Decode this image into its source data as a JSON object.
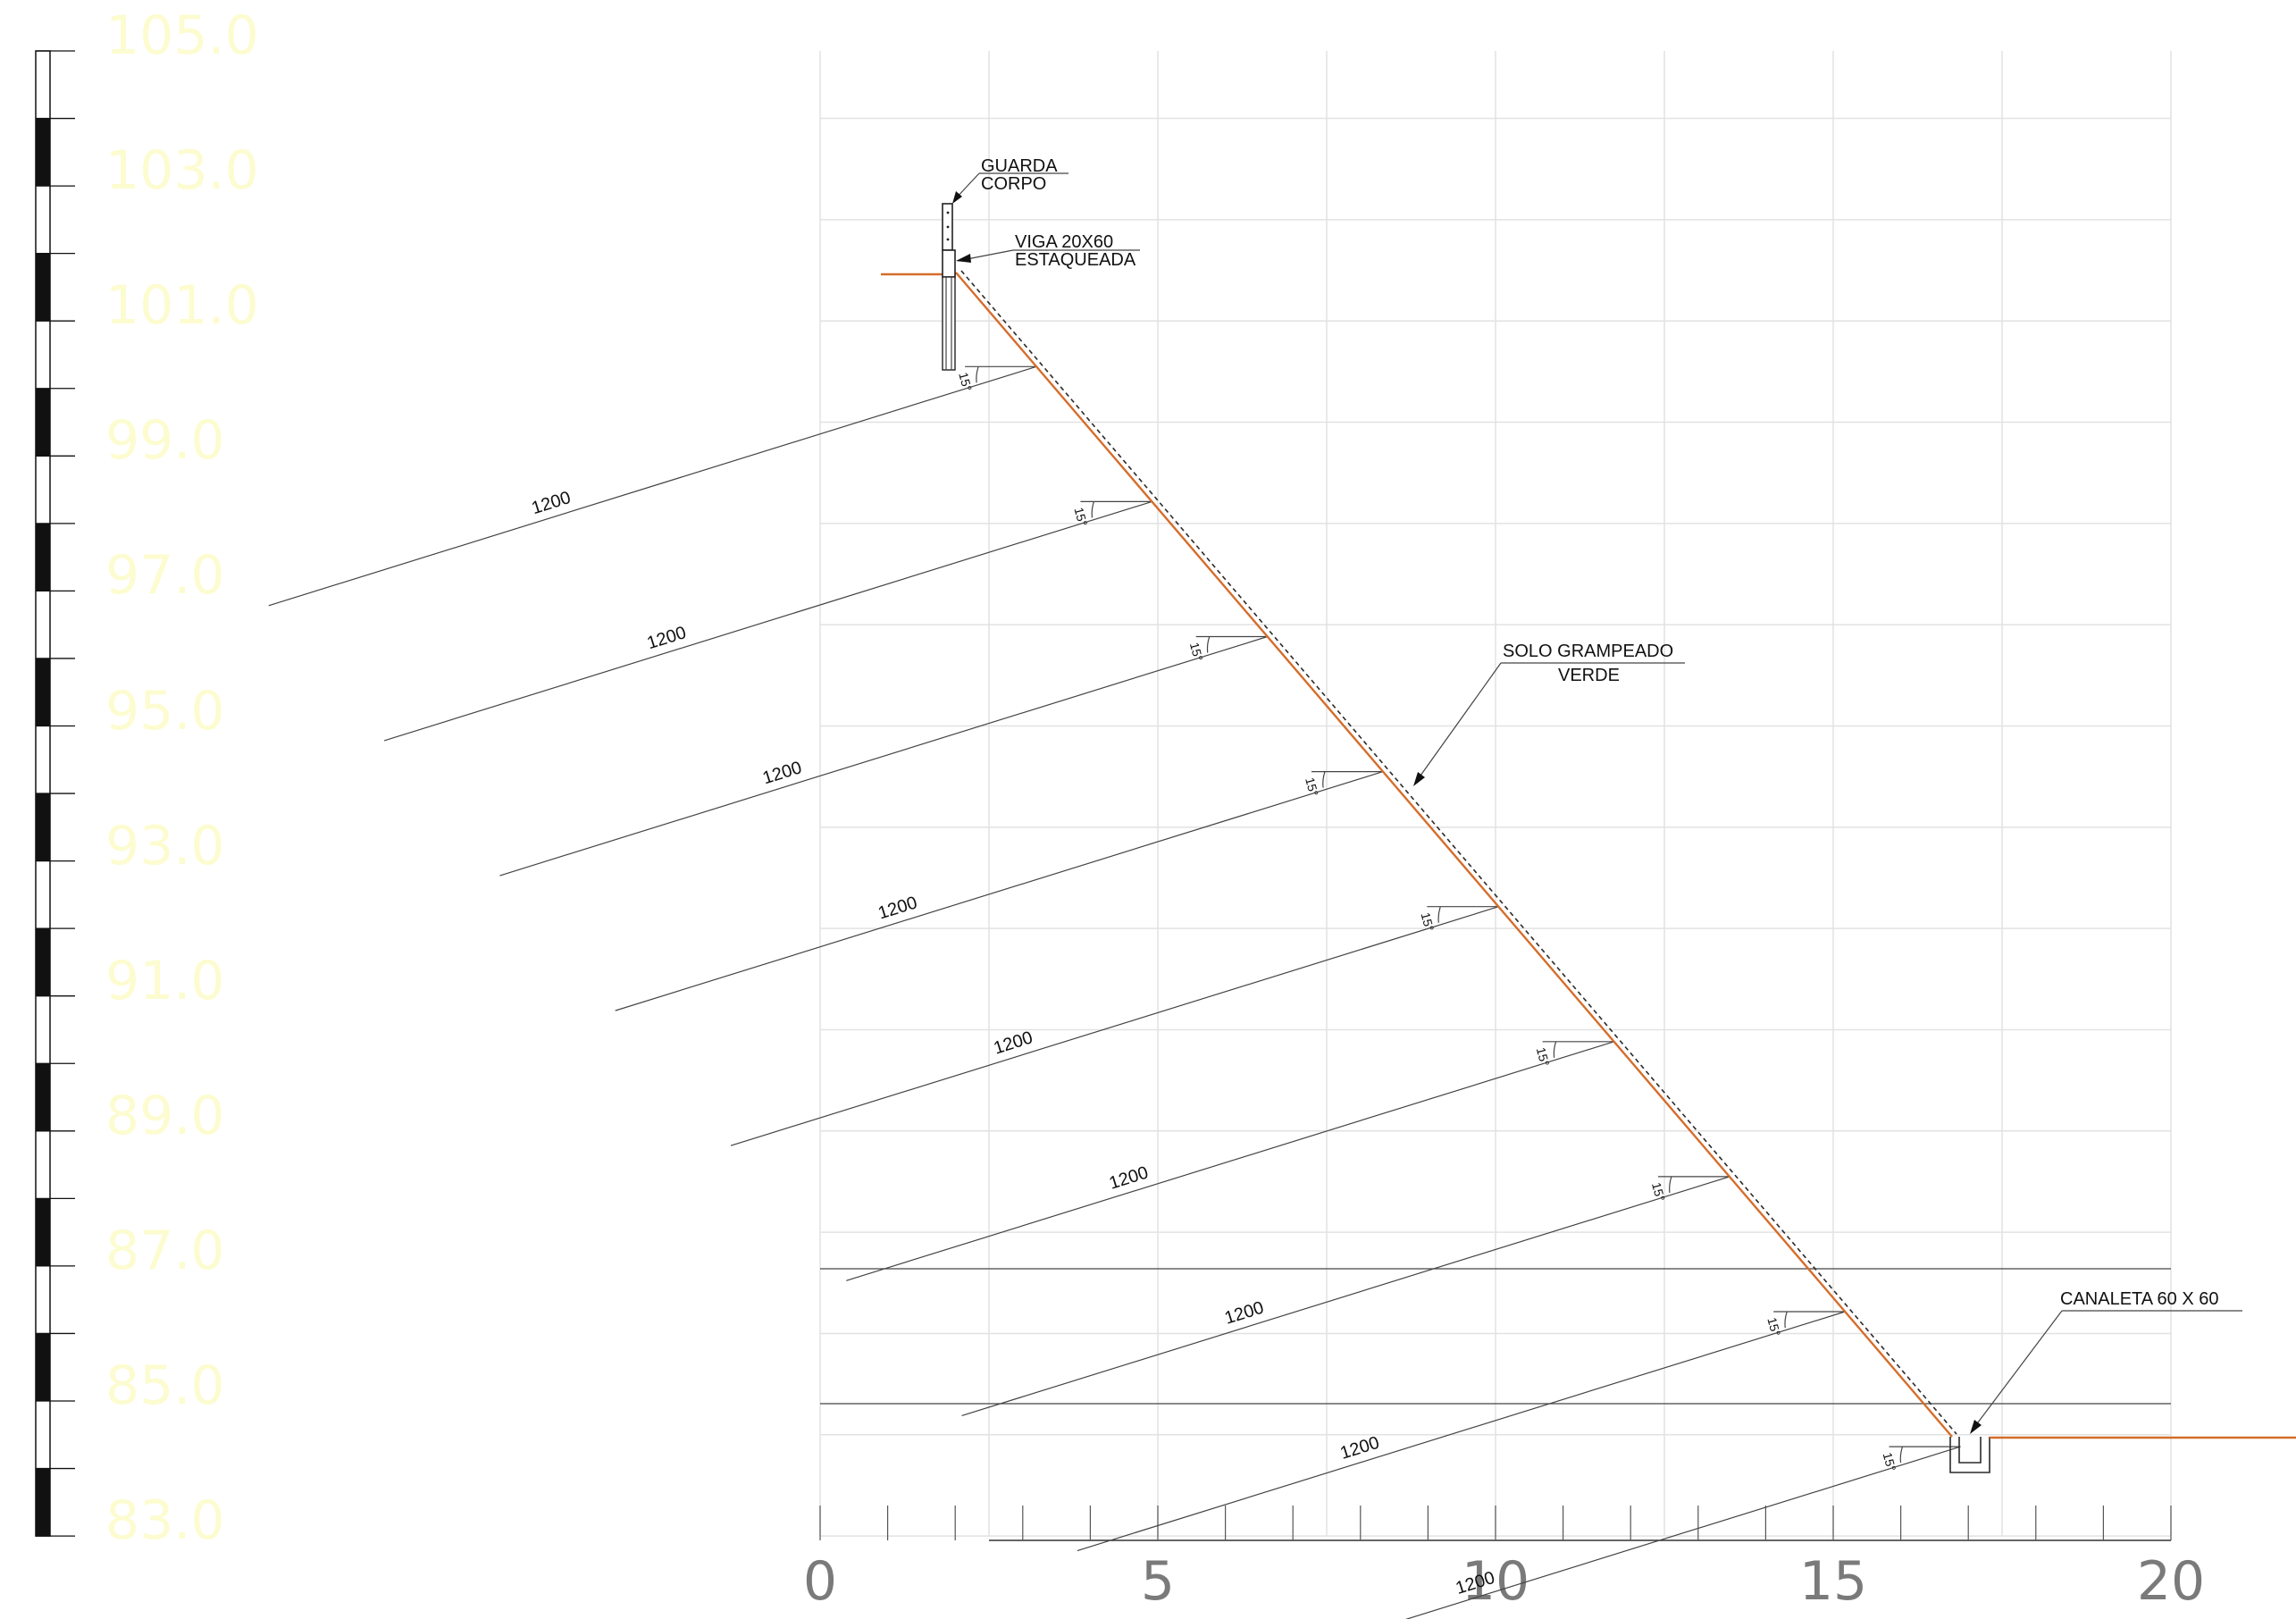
{
  "elevation_scale": {
    "labels": [
      "105.0",
      "103.0",
      "101.0",
      "99.0",
      "97.0",
      "95.0",
      "93.0",
      "91.0",
      "89.0",
      "87.0",
      "85.0",
      "83.0"
    ],
    "values": [
      105,
      103,
      101,
      99,
      97,
      95,
      93,
      91,
      89,
      87,
      85,
      83
    ],
    "label_color": "#fcfcd0"
  },
  "distance_scale": {
    "labels": [
      "0",
      "5",
      "10",
      "15",
      "20"
    ],
    "values": [
      0,
      5,
      10,
      15,
      20
    ]
  },
  "annotations": {
    "guard_rail": [
      "GUARDA",
      "CORPO"
    ],
    "beam": [
      "VIGA 20X60",
      "ESTAQUEADA"
    ],
    "slope": [
      "SOLO GRAMPEADO",
      "VERDE"
    ],
    "channel": "CANALETA 60 X 60"
  },
  "nails": {
    "length_label": "1200",
    "angle_label": "15°",
    "head_elevations": [
      100.8,
      98.8,
      96.8,
      94.8,
      92.8,
      90.8,
      88.8,
      86.8,
      84.8
    ],
    "count": 9
  },
  "colors": {
    "ground_line": "#d56d2a",
    "ink": "#2a2a2a",
    "grid": "#e2e2e2"
  }
}
